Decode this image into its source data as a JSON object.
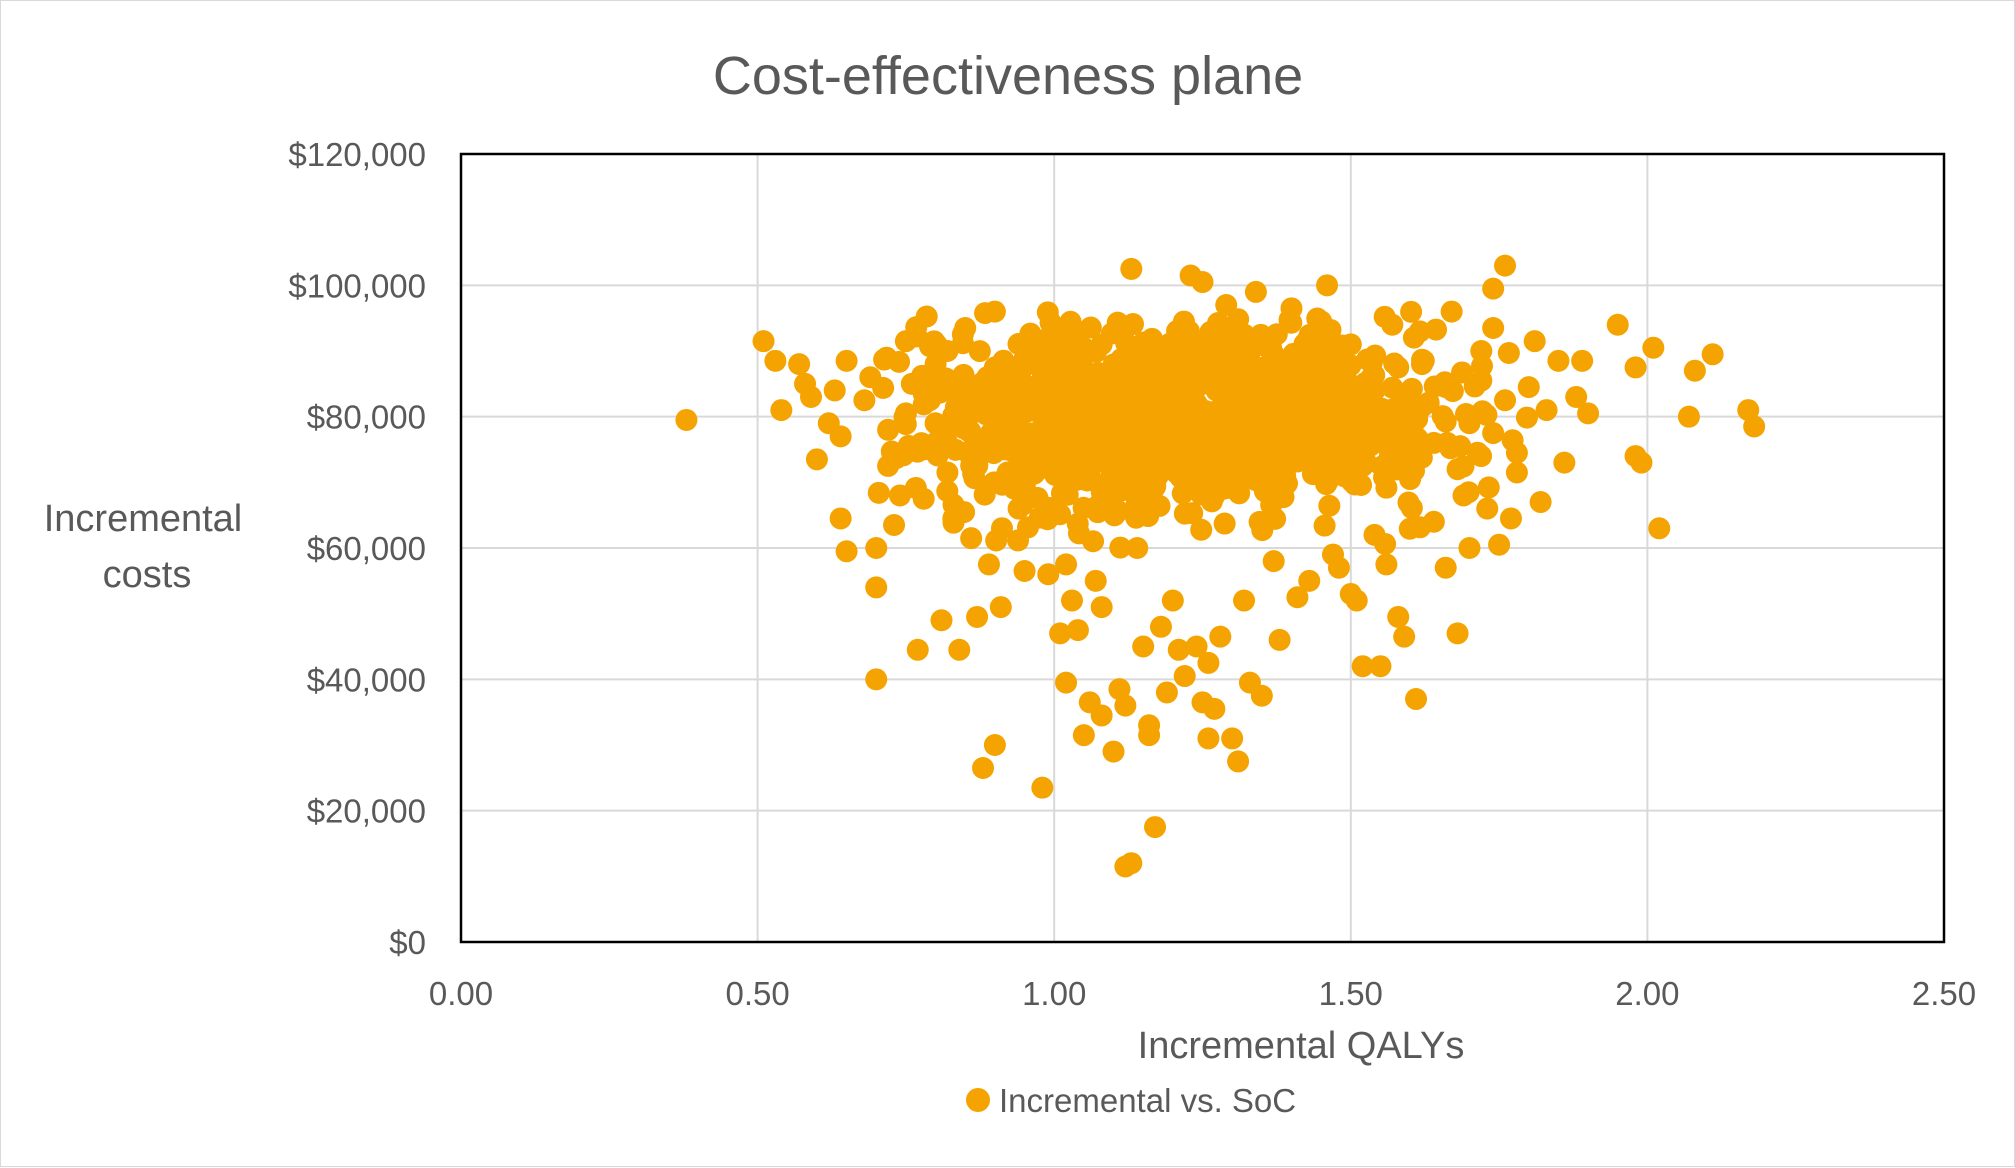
{
  "chart_data": {
    "type": "scatter",
    "title": "Cost-effectiveness plane",
    "xlabel": "Incremental QALYs",
    "ylabel_lines": [
      "Incremental",
      "costs"
    ],
    "xlim": [
      0,
      2.5
    ],
    "ylim": [
      0,
      120000
    ],
    "x_ticks": [
      0,
      0.5,
      1.0,
      1.5,
      2.0,
      2.5
    ],
    "x_tick_labels": [
      "0.00",
      "0.50",
      "1.00",
      "1.50",
      "2.00",
      "2.50"
    ],
    "y_ticks": [
      0,
      20000,
      40000,
      60000,
      80000,
      100000,
      120000
    ],
    "y_tick_labels": [
      "$0",
      "$20,000",
      "$40,000",
      "$60,000",
      "$80,000",
      "$100,000",
      "$120,000"
    ],
    "grid": true,
    "legend_position": "bottom-center",
    "series": [
      {
        "name": "Incremental vs. SoC",
        "color": "#F5A300",
        "points": [
          [
            0.38,
            79500
          ],
          [
            0.51,
            91500
          ],
          [
            0.53,
            88500
          ],
          [
            0.54,
            81000
          ],
          [
            0.57,
            88000
          ],
          [
            0.58,
            85000
          ],
          [
            0.59,
            83000
          ],
          [
            0.6,
            73500
          ],
          [
            0.62,
            79000
          ],
          [
            0.63,
            84000
          ],
          [
            0.64,
            77000
          ],
          [
            0.65,
            88500
          ],
          [
            0.64,
            64500
          ],
          [
            0.65,
            59500
          ],
          [
            0.68,
            82500
          ],
          [
            0.69,
            86000
          ],
          [
            0.7,
            60000
          ],
          [
            0.7,
            54000
          ],
          [
            0.7,
            40000
          ],
          [
            0.72,
            72500
          ],
          [
            0.73,
            63500
          ],
          [
            0.74,
            68000
          ],
          [
            0.75,
            91500
          ],
          [
            0.76,
            85000
          ],
          [
            0.77,
            44500
          ],
          [
            0.78,
            67500
          ],
          [
            0.8,
            88000
          ],
          [
            0.8,
            79000
          ],
          [
            0.81,
            49000
          ],
          [
            0.82,
            90000
          ],
          [
            0.83,
            64500
          ],
          [
            0.84,
            44500
          ],
          [
            0.85,
            93500
          ],
          [
            0.86,
            61500
          ],
          [
            0.87,
            49500
          ],
          [
            0.88,
            26500
          ],
          [
            0.89,
            57500
          ],
          [
            0.9,
            96000
          ],
          [
            0.9,
            30000
          ],
          [
            0.91,
            51000
          ],
          [
            0.92,
            80500
          ],
          [
            0.94,
            66000
          ],
          [
            0.95,
            56500
          ],
          [
            0.97,
            84000
          ],
          [
            0.98,
            23500
          ],
          [
            0.99,
            56000
          ],
          [
            1.0,
            77000
          ],
          [
            1.01,
            47000
          ],
          [
            1.02,
            57500
          ],
          [
            1.02,
            39500
          ],
          [
            1.03,
            52000
          ],
          [
            1.04,
            47500
          ],
          [
            1.05,
            31500
          ],
          [
            1.06,
            36500
          ],
          [
            1.07,
            55000
          ],
          [
            1.08,
            34500
          ],
          [
            1.08,
            51000
          ],
          [
            1.1,
            29000
          ],
          [
            1.11,
            38500
          ],
          [
            1.12,
            36000
          ],
          [
            1.12,
            11500
          ],
          [
            1.13,
            102500
          ],
          [
            1.13,
            12000
          ],
          [
            1.14,
            60000
          ],
          [
            1.15,
            45000
          ],
          [
            1.16,
            31500
          ],
          [
            1.16,
            33000
          ],
          [
            1.17,
            17500
          ],
          [
            1.18,
            48000
          ],
          [
            1.19,
            38000
          ],
          [
            1.2,
            52000
          ],
          [
            1.21,
            44500
          ],
          [
            1.22,
            40500
          ],
          [
            1.23,
            101500
          ],
          [
            1.24,
            45000
          ],
          [
            1.25,
            100500
          ],
          [
            1.25,
            36500
          ],
          [
            1.26,
            42500
          ],
          [
            1.26,
            31000
          ],
          [
            1.27,
            35500
          ],
          [
            1.28,
            46500
          ],
          [
            1.29,
            97000
          ],
          [
            1.3,
            31000
          ],
          [
            1.31,
            27500
          ],
          [
            1.32,
            52000
          ],
          [
            1.33,
            39500
          ],
          [
            1.34,
            99000
          ],
          [
            1.35,
            37500
          ],
          [
            1.37,
            58000
          ],
          [
            1.38,
            46000
          ],
          [
            1.4,
            96500
          ],
          [
            1.41,
            52500
          ],
          [
            1.43,
            55000
          ],
          [
            1.45,
            94500
          ],
          [
            1.46,
            100000
          ],
          [
            1.47,
            59000
          ],
          [
            1.48,
            57000
          ],
          [
            1.5,
            53000
          ],
          [
            1.51,
            52000
          ],
          [
            1.52,
            42000
          ],
          [
            1.54,
            62000
          ],
          [
            1.55,
            42000
          ],
          [
            1.56,
            57500
          ],
          [
            1.57,
            94000
          ],
          [
            1.58,
            49500
          ],
          [
            1.59,
            46500
          ],
          [
            1.61,
            37000
          ],
          [
            1.62,
            88000
          ],
          [
            1.64,
            64000
          ],
          [
            1.66,
            57000
          ],
          [
            1.67,
            96000
          ],
          [
            1.68,
            47000
          ],
          [
            1.69,
            68000
          ],
          [
            1.7,
            60000
          ],
          [
            1.72,
            90000
          ],
          [
            1.73,
            66000
          ],
          [
            1.74,
            93500
          ],
          [
            1.74,
            99500
          ],
          [
            1.75,
            60500
          ],
          [
            1.76,
            103000
          ],
          [
            1.77,
            64500
          ],
          [
            1.78,
            71500
          ],
          [
            1.8,
            84500
          ],
          [
            1.81,
            91500
          ],
          [
            1.82,
            67000
          ],
          [
            1.83,
            81000
          ],
          [
            1.85,
            88500
          ],
          [
            1.86,
            73000
          ],
          [
            1.88,
            83000
          ],
          [
            1.89,
            88500
          ],
          [
            1.9,
            80500
          ],
          [
            1.95,
            94000
          ],
          [
            1.98,
            87500
          ],
          [
            1.98,
            74000
          ],
          [
            1.99,
            73000
          ],
          [
            2.01,
            90500
          ],
          [
            2.02,
            63000
          ],
          [
            2.07,
            80000
          ],
          [
            2.08,
            87000
          ],
          [
            2.11,
            89500
          ],
          [
            2.17,
            81000
          ],
          [
            2.18,
            78500
          ],
          [
            0.72,
            78000
          ],
          [
            0.75,
            80500
          ],
          [
            0.78,
            83500
          ],
          [
            0.8,
            76000
          ],
          [
            0.82,
            71500
          ],
          [
            0.84,
            85500
          ],
          [
            0.86,
            81500
          ],
          [
            0.88,
            74500
          ],
          [
            0.9,
            87500
          ],
          [
            0.92,
            78000
          ],
          [
            0.94,
            83000
          ],
          [
            0.96,
            72000
          ],
          [
            0.98,
            89500
          ],
          [
            1.0,
            82500
          ],
          [
            1.02,
            69000
          ],
          [
            1.04,
            86500
          ],
          [
            1.06,
            79000
          ],
          [
            1.08,
            91000
          ],
          [
            1.1,
            74000
          ],
          [
            1.12,
            84000
          ],
          [
            1.14,
            67500
          ],
          [
            1.16,
            88500
          ],
          [
            1.18,
            80000
          ],
          [
            1.2,
            73000
          ],
          [
            1.22,
            90500
          ],
          [
            1.24,
            82000
          ],
          [
            1.26,
            70000
          ],
          [
            1.28,
            86500
          ],
          [
            1.3,
            78500
          ],
          [
            1.32,
            92500
          ],
          [
            1.34,
            75000
          ],
          [
            1.36,
            84500
          ],
          [
            1.38,
            69500
          ],
          [
            1.4,
            88000
          ],
          [
            1.42,
            80500
          ],
          [
            1.44,
            73500
          ],
          [
            1.46,
            86000
          ],
          [
            1.48,
            78000
          ],
          [
            1.5,
            91000
          ],
          [
            1.52,
            72500
          ],
          [
            1.54,
            84000
          ],
          [
            1.56,
            77000
          ],
          [
            1.58,
            87500
          ],
          [
            1.6,
            70500
          ],
          [
            1.62,
            81500
          ],
          [
            1.64,
            76000
          ],
          [
            1.66,
            84500
          ],
          [
            1.68,
            72000
          ],
          [
            1.7,
            79000
          ],
          [
            1.72,
            85500
          ],
          [
            1.74,
            77500
          ],
          [
            1.76,
            82500
          ],
          [
            1.78,
            74500
          ]
        ]
      }
    ]
  }
}
